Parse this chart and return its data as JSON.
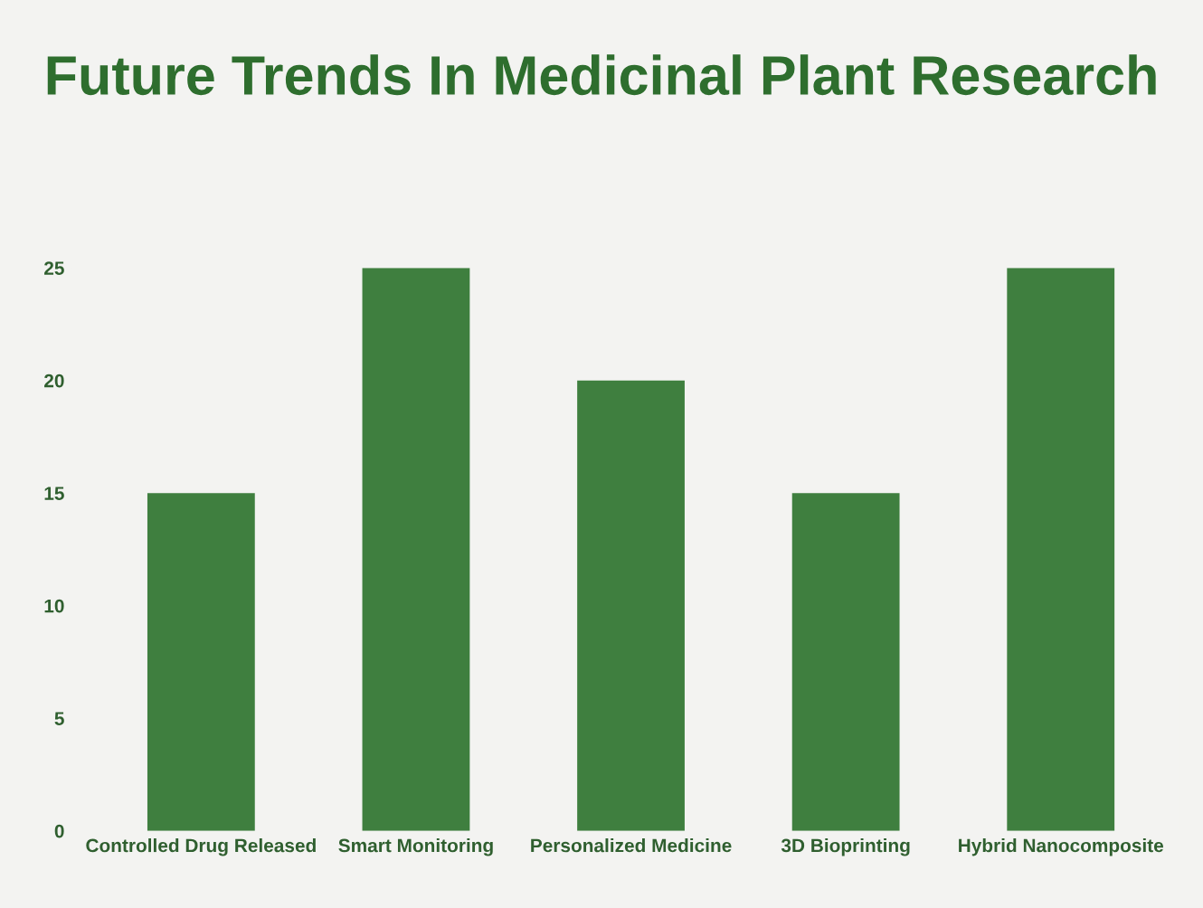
{
  "chart_data": {
    "type": "bar",
    "title": "Future Trends In Medicinal Plant Research",
    "categories": [
      "Controlled Drug Released",
      "Smart Monitoring",
      "Personalized Medicine",
      "3D Bioprinting",
      "Hybrid Nanocomposite"
    ],
    "values": [
      15,
      25,
      20,
      15,
      25
    ],
    "color": "#3f7f3f",
    "ylim": [
      0,
      25
    ],
    "yticks": [
      0,
      5,
      10,
      15,
      20,
      25
    ],
    "grid": false
  }
}
